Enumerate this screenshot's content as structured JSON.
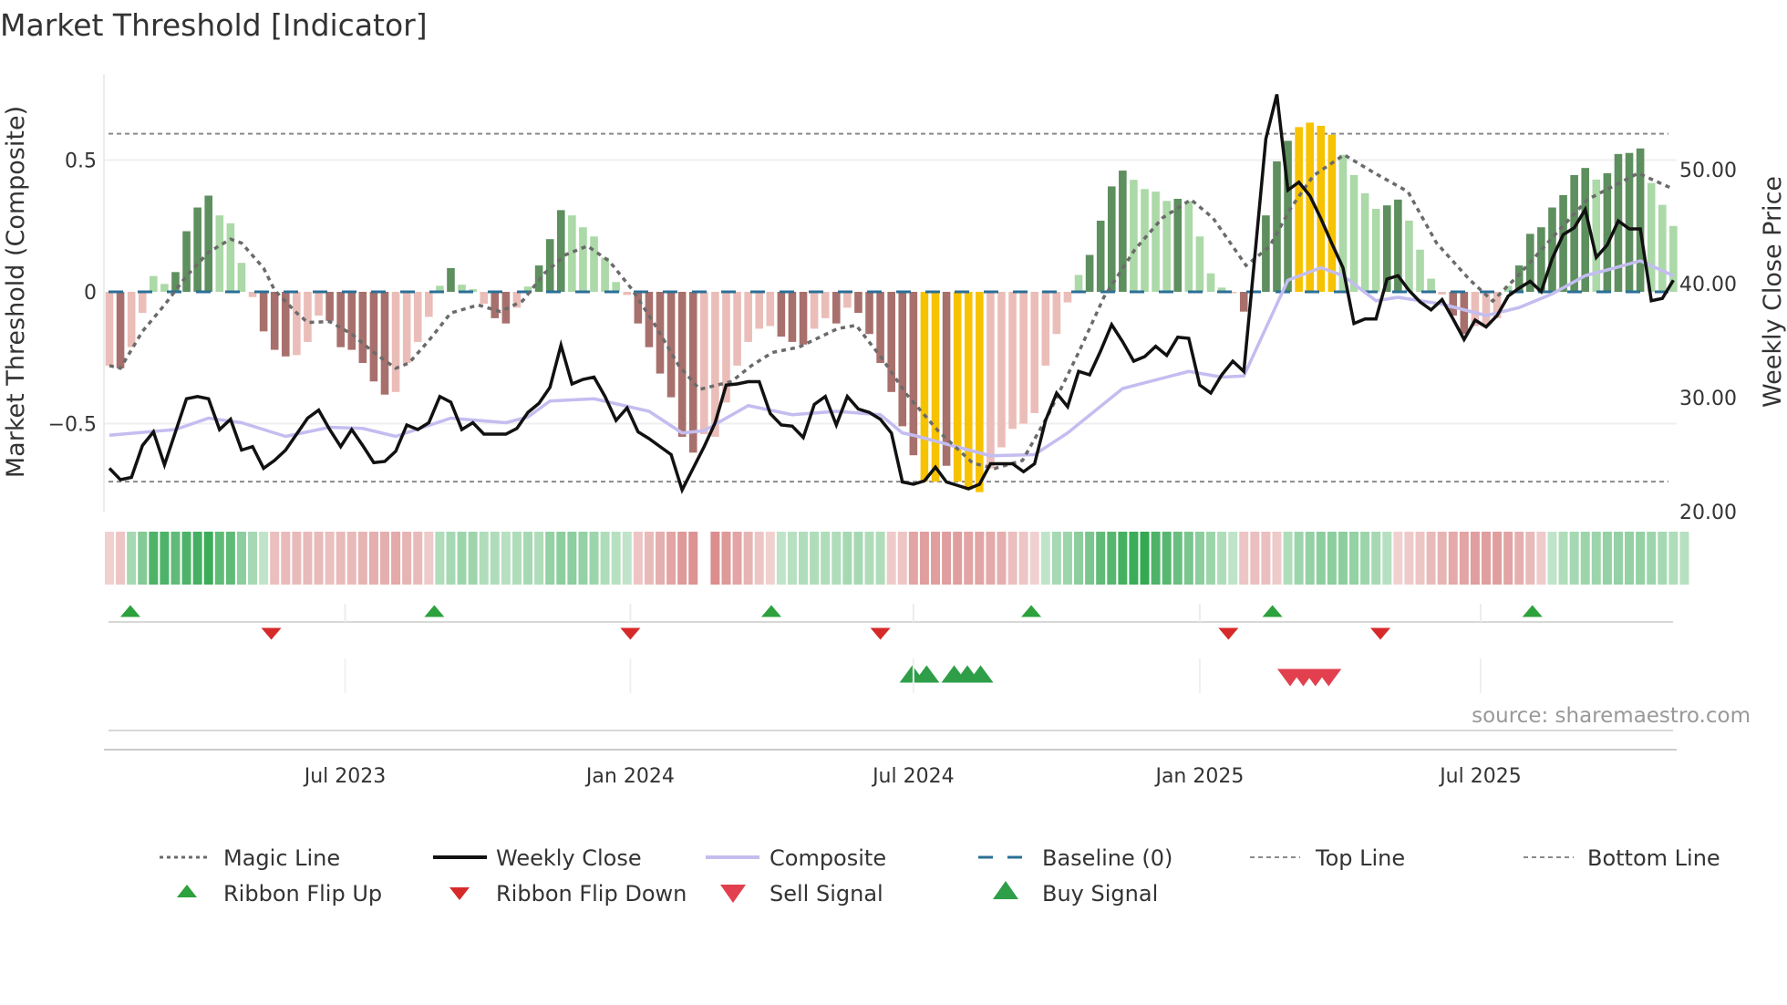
{
  "title": "Market Threshold [Indicator]",
  "source": "source: sharemaestro.com",
  "chart_data": {
    "type": "bar",
    "title": "Market Threshold [Indicator]",
    "ylabel_left": "Market Threshold (Composite)",
    "ylabel_right": "Weekly Close Price",
    "ylim_left": [
      -0.84,
      0.83
    ],
    "ylim_right": [
      19.5,
      58.5
    ],
    "y_left_ticks": [
      {
        "v": 0.5,
        "label": "0.5"
      },
      {
        "v": 0,
        "label": "0"
      },
      {
        "v": -0.5,
        "label": "−0.5"
      }
    ],
    "y_right_ticks": [
      {
        "v": 50,
        "label": "50.00"
      },
      {
        "v": 40,
        "label": "40.00"
      },
      {
        "v": 30,
        "label": "30.00"
      },
      {
        "v": 20,
        "label": "20.00"
      }
    ],
    "x_unit": "week index",
    "x_ticks": [
      {
        "week": 21.4,
        "label": "Jul 2023"
      },
      {
        "week": 47.3,
        "label": "Jan 2024"
      },
      {
        "week": 73.0,
        "label": "Jul 2024"
      },
      {
        "week": 99.0,
        "label": "Jan 2025"
      },
      {
        "week": 124.5,
        "label": "Jul 2025"
      }
    ],
    "baseline": 0,
    "top_line": 0.6,
    "bottom_line": -0.72,
    "grid": true,
    "histogram_values": [
      -0.28,
      -0.29,
      -0.21,
      -0.08,
      0.06,
      0.03,
      0.075,
      0.23,
      0.32,
      0.365,
      0.29,
      0.26,
      0.11,
      -0.02,
      -0.15,
      -0.22,
      -0.245,
      -0.24,
      -0.19,
      -0.09,
      -0.11,
      -0.21,
      -0.22,
      -0.27,
      -0.34,
      -0.39,
      -0.38,
      -0.27,
      -0.19,
      -0.095,
      0.023,
      0.09,
      0.027,
      0.01,
      -0.045,
      -0.1,
      -0.12,
      -0.06,
      0.02,
      0.1,
      0.2,
      0.31,
      0.29,
      0.245,
      0.21,
      0.13,
      0.037,
      -0.012,
      -0.12,
      -0.21,
      -0.31,
      -0.4,
      -0.55,
      -0.61,
      -0.54,
      -0.55,
      -0.42,
      -0.28,
      -0.19,
      -0.14,
      -0.13,
      -0.17,
      -0.19,
      -0.2,
      -0.14,
      -0.1,
      -0.12,
      -0.06,
      -0.08,
      -0.16,
      -0.27,
      -0.38,
      -0.51,
      -0.62,
      -0.72,
      -0.72,
      -0.66,
      -0.72,
      -0.75,
      -0.76,
      -0.67,
      -0.59,
      -0.52,
      -0.5,
      -0.46,
      -0.28,
      -0.16,
      -0.04,
      0.064,
      0.14,
      0.27,
      0.4,
      0.46,
      0.425,
      0.39,
      0.38,
      0.345,
      0.353,
      0.344,
      0.21,
      0.07,
      0.016,
      -0.005,
      -0.075,
      0.005,
      0.29,
      0.495,
      0.573,
      0.625,
      0.642,
      0.63,
      0.596,
      0.52,
      0.443,
      0.374,
      0.315,
      0.328,
      0.35,
      0.27,
      0.16,
      0.05,
      -0.01,
      -0.09,
      -0.16,
      -0.13,
      -0.13,
      -0.1,
      0.023,
      0.1,
      0.22,
      0.245,
      0.32,
      0.367,
      0.443,
      0.47,
      0.426,
      0.45,
      0.523,
      0.527,
      0.544,
      0.413,
      0.33,
      0.25
    ],
    "histogram_classes": [
      "LP",
      "DR",
      "LP",
      "LP",
      "LG",
      "LG",
      "DG",
      "DG",
      "DG",
      "DG",
      "LG",
      "LG",
      "LG",
      "LP",
      "DR",
      "DR",
      "DR",
      "LP",
      "LP",
      "LP",
      "DR",
      "DR",
      "DR",
      "DR",
      "DR",
      "DR",
      "LP",
      "LP",
      "LP",
      "LP",
      "LG",
      "DG",
      "LG",
      "LG",
      "LP",
      "DR",
      "DR",
      "LP",
      "LG",
      "DG",
      "DG",
      "DG",
      "LG",
      "LG",
      "LG",
      "LG",
      "LG",
      "LP",
      "DR",
      "DR",
      "DR",
      "DR",
      "DR",
      "DR",
      "LP",
      "LP",
      "LP",
      "LP",
      "LP",
      "LP",
      "LP",
      "DR",
      "DR",
      "DR",
      "LP",
      "LP",
      "DR",
      "LP",
      "DR",
      "DR",
      "DR",
      "DR",
      "DR",
      "DR",
      "Y",
      "Y",
      "DR",
      "Y",
      "Y",
      "Y",
      "LP",
      "LP",
      "LP",
      "LP",
      "LP",
      "LP",
      "LP",
      "LP",
      "LG",
      "DG",
      "DG",
      "DG",
      "DG",
      "LG",
      "LG",
      "LG",
      "LG",
      "DG",
      "LG",
      "LG",
      "LG",
      "LG",
      "LP",
      "DR",
      "LG",
      "DG",
      "DG",
      "DG",
      "Y",
      "Y",
      "Y",
      "Y",
      "LG",
      "LG",
      "LG",
      "LG",
      "DG",
      "DG",
      "LG",
      "LG",
      "LG",
      "LP",
      "DR",
      "DR",
      "LP",
      "LP",
      "LP",
      "LG",
      "DG",
      "DG",
      "DG",
      "DG",
      "DG",
      "DG",
      "DG",
      "LG",
      "DG",
      "DG",
      "DG",
      "DG",
      "LG",
      "LG",
      "LG"
    ],
    "weekly_close": [
      23.8,
      22.8,
      23.0,
      25.8,
      27.0,
      24.1,
      27.0,
      29.9,
      30.1,
      29.9,
      27.2,
      28.1,
      25.4,
      25.7,
      23.8,
      24.5,
      25.4,
      26.8,
      28.2,
      28.9,
      27.2,
      25.7,
      27.2,
      25.8,
      24.3,
      24.4,
      25.3,
      27.6,
      27.2,
      27.8,
      30.1,
      29.6,
      27.2,
      27.8,
      26.8,
      26.8,
      26.8,
      27.3,
      28.7,
      29.5,
      30.9,
      34.6,
      31.2,
      31.6,
      31.8,
      30.1,
      28.0,
      29.1,
      27.0,
      26.4,
      25.7,
      25.0,
      21.9,
      23.8,
      25.7,
      27.8,
      31.1,
      31.2,
      31.4,
      31.4,
      28.6,
      27.6,
      27.5,
      26.5,
      29.4,
      30.1,
      27.6,
      30.1,
      29.0,
      28.7,
      28.1,
      26.9,
      22.6,
      22.4,
      22.7,
      23.9,
      22.6,
      22.3,
      22.0,
      22.4,
      24.2,
      24.2,
      24.2,
      23.5,
      24.2,
      28.0,
      30.4,
      29.2,
      32.3,
      32.0,
      34.1,
      36.4,
      34.9,
      33.2,
      33.6,
      34.5,
      33.7,
      35.3,
      35.2,
      31.1,
      30.4,
      32.0,
      33.2,
      32.3,
      42.4,
      52.7,
      56.6,
      48.2,
      48.9,
      47.7,
      45.7,
      43.5,
      41.4,
      36.5,
      36.9,
      36.9,
      40.4,
      40.7,
      39.4,
      38.4,
      37.7,
      38.6,
      36.9,
      35.1,
      36.8,
      36.2,
      37.2,
      38.9,
      39.6,
      40.2,
      39.3,
      42.2,
      44.3,
      44.9,
      46.5,
      42.3,
      43.4,
      45.5,
      44.8,
      44.8,
      38.5,
      38.7,
      40.3
    ],
    "composite_line": [
      [
        0,
        26.7
      ],
      [
        6,
        27.2
      ],
      [
        9,
        28.2
      ],
      [
        12,
        27.8
      ],
      [
        16,
        26.6
      ],
      [
        20,
        27.4
      ],
      [
        23,
        27.3
      ],
      [
        26,
        26.6
      ],
      [
        31,
        28.2
      ],
      [
        36,
        27.8
      ],
      [
        38,
        28.3
      ],
      [
        40,
        29.7
      ],
      [
        44,
        29.9
      ],
      [
        49,
        28.8
      ],
      [
        52,
        26.9
      ],
      [
        54,
        27.1
      ],
      [
        58,
        29.3
      ],
      [
        62,
        28.5
      ],
      [
        66,
        28.8
      ],
      [
        70,
        28.5
      ],
      [
        72,
        26.9
      ],
      [
        73,
        26.7
      ],
      [
        80,
        24.9
      ],
      [
        84,
        25.0
      ],
      [
        87,
        26.9
      ],
      [
        92,
        30.8
      ],
      [
        98,
        32.3
      ],
      [
        101,
        31.8
      ],
      [
        103,
        31.9
      ],
      [
        107,
        40.3
      ],
      [
        110,
        41.4
      ],
      [
        112,
        40.7
      ],
      [
        115,
        38.5
      ],
      [
        117,
        38.8
      ],
      [
        121,
        38.2
      ],
      [
        125,
        37.2
      ],
      [
        128,
        37.9
      ],
      [
        131,
        39.1
      ],
      [
        134,
        40.7
      ],
      [
        136,
        41.2
      ],
      [
        139,
        42.0
      ],
      [
        142,
        40.7
      ]
    ],
    "magic_line": [
      [
        0,
        -0.28
      ],
      [
        1,
        -0.29
      ],
      [
        3,
        -0.15
      ],
      [
        5,
        -0.05
      ],
      [
        7,
        0.06
      ],
      [
        9,
        0.15
      ],
      [
        11,
        0.2
      ],
      [
        12,
        0.185
      ],
      [
        14,
        0.09
      ],
      [
        15,
        0.006
      ],
      [
        17,
        -0.08
      ],
      [
        18,
        -0.116
      ],
      [
        20,
        -0.113
      ],
      [
        22,
        -0.16
      ],
      [
        24,
        -0.23
      ],
      [
        26,
        -0.29
      ],
      [
        27.2,
        -0.27
      ],
      [
        29,
        -0.185
      ],
      [
        31,
        -0.08
      ],
      [
        33.5,
        -0.05
      ],
      [
        35.5,
        -0.075
      ],
      [
        37.5,
        -0.035
      ],
      [
        39.5,
        0.07
      ],
      [
        41.4,
        0.14
      ],
      [
        43.4,
        0.174
      ],
      [
        45.4,
        0.116
      ],
      [
        47.4,
        0.012
      ],
      [
        49.4,
        -0.116
      ],
      [
        51.7,
        -0.28
      ],
      [
        53.6,
        -0.37
      ],
      [
        56.5,
        -0.34
      ],
      [
        58.3,
        -0.28
      ],
      [
        60.2,
        -0.23
      ],
      [
        62.6,
        -0.21
      ],
      [
        66.1,
        -0.14
      ],
      [
        67.8,
        -0.127
      ],
      [
        70.1,
        -0.25
      ],
      [
        72.4,
        -0.39
      ],
      [
        75.3,
        -0.53
      ],
      [
        78.4,
        -0.65
      ],
      [
        80.4,
        -0.67
      ],
      [
        82.9,
        -0.64
      ],
      [
        85.2,
        -0.47
      ],
      [
        88,
        -0.23
      ],
      [
        90.3,
        -0.02
      ],
      [
        93.1,
        0.16
      ],
      [
        95.6,
        0.28
      ],
      [
        98.2,
        0.35
      ],
      [
        100.2,
        0.28
      ],
      [
        103.2,
        0.1
      ],
      [
        105.3,
        0.17
      ],
      [
        107.3,
        0.32
      ],
      [
        109.3,
        0.44
      ],
      [
        112.1,
        0.52
      ],
      [
        114.9,
        0.45
      ],
      [
        117.9,
        0.38
      ],
      [
        120.5,
        0.185
      ],
      [
        123.5,
        0.046
      ],
      [
        125.6,
        -0.035
      ],
      [
        128.1,
        0.07
      ],
      [
        131.1,
        0.21
      ],
      [
        134.2,
        0.35
      ],
      [
        138.8,
        0.45
      ],
      [
        142,
        0.39
      ]
    ],
    "ribbon": [
      -0.15,
      -0.25,
      0.35,
      0.55,
      0.85,
      0.85,
      0.75,
      0.85,
      0.9,
      0.95,
      0.75,
      0.75,
      0.5,
      0.35,
      0.2,
      -0.3,
      -0.35,
      -0.35,
      -0.35,
      -0.35,
      -0.3,
      -0.35,
      -0.35,
      -0.4,
      -0.45,
      -0.45,
      -0.5,
      -0.4,
      -0.35,
      -0.2,
      0.3,
      0.35,
      0.4,
      0.4,
      0.3,
      0.3,
      0.25,
      0.3,
      0.35,
      0.3,
      0.45,
      0.5,
      0.5,
      0.45,
      0.4,
      0.3,
      0.25,
      0.2,
      -0.25,
      -0.35,
      -0.45,
      -0.55,
      -0.65,
      -0.7,
      0,
      -0.75,
      -0.65,
      -0.55,
      -0.4,
      -0.25,
      -0.15,
      0.2,
      0.25,
      0.3,
      0.3,
      0.3,
      0.3,
      0.35,
      0.35,
      0.3,
      0.3,
      -0.2,
      -0.25,
      -0.55,
      -0.6,
      -0.6,
      -0.6,
      -0.6,
      -0.55,
      -0.55,
      -0.5,
      -0.45,
      -0.3,
      -0.25,
      -0.15,
      0.2,
      0.35,
      0.4,
      0.5,
      0.6,
      0.75,
      0.8,
      0.9,
      0.95,
      1.0,
      0.85,
      0.8,
      0.7,
      0.6,
      0.5,
      0.4,
      0.3,
      0.2,
      -0.25,
      -0.3,
      -0.3,
      -0.2,
      0.3,
      0.4,
      0.45,
      0.5,
      0.5,
      0.5,
      0.45,
      0.4,
      0.35,
      0.25,
      -0.15,
      -0.2,
      -0.25,
      -0.35,
      -0.4,
      -0.5,
      -0.55,
      -0.6,
      -0.6,
      -0.6,
      -0.55,
      -0.45,
      -0.35,
      -0.2,
      0.2,
      0.3,
      0.35,
      0.4,
      0.4,
      0.45,
      0.45,
      0.45,
      0.45,
      0.4,
      0.35,
      0.3,
      0.25
    ],
    "ribbon_flip_up": [
      1.9,
      29.5,
      60.1,
      83.7,
      105.6,
      129.2
    ],
    "ribbon_flip_down": [
      14.7,
      47.3,
      70.0,
      101.6,
      115.4
    ],
    "buy_signals": [
      72.9,
      74.2,
      76.7,
      77.9,
      79.1
    ],
    "sell_signals": [
      107.2,
      108.4,
      109.5,
      110.7
    ],
    "legend": {
      "magic_line": "Magic Line",
      "weekly_close": "Weekly Close",
      "composite": "Composite",
      "baseline": "Baseline (0)",
      "top_line": "Top Line",
      "bottom_line": "Bottom Line",
      "ribbon_flip_up": "Ribbon Flip Up",
      "ribbon_flip_down": "Ribbon Flip Down",
      "sell_signal": "Sell Signal",
      "buy_signal": "Buy Signal"
    },
    "colors": {
      "DG": "#5e8f5e",
      "LG": "#abd9a7",
      "DR": "#a8706c",
      "LP": "#ebbdb8",
      "Y": "#f7c200",
      "weekly_close": "#111111",
      "composite": "#c3bdf0",
      "magic_line": "#6b6b6b",
      "baseline": "#2b6f96",
      "threshold_lines": "#8a8a8a",
      "flip_up": "#2ca13c",
      "flip_down": "#d62a2a",
      "buy": "#2e9e48",
      "sell": "#e2404e"
    }
  }
}
